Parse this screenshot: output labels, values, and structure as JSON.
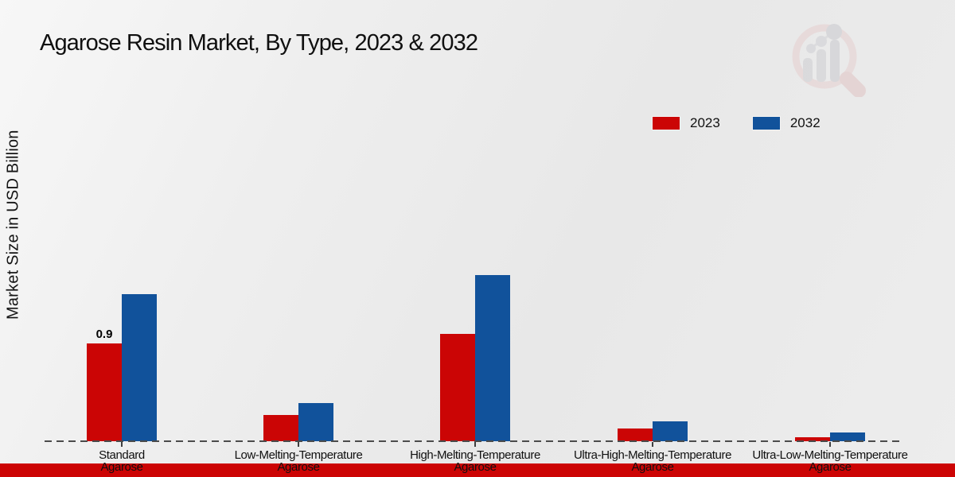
{
  "footer": {
    "bar_color": "#cc0404"
  },
  "watermark": {
    "name": "magnifier-bar-chart-logo"
  },
  "chart_data": {
    "type": "bar",
    "title": "Agarose Resin Market, By Type, 2023 & 2032",
    "ylabel": "Market Size in USD Billion",
    "xlabel": "",
    "categories": [
      {
        "line1": "Standard",
        "line2": "Agarose"
      },
      {
        "line1": "Low-Melting-Temperature",
        "line2": "Agarose"
      },
      {
        "line1": "High-Melting-Temperature",
        "line2": "Agarose"
      },
      {
        "line1": "Ultra-High-Melting-Temperature",
        "line2": "Agarose"
      },
      {
        "line1": "Ultra-Low-Melting-Temperature",
        "line2": "Agarose"
      }
    ],
    "series": [
      {
        "name": "2023",
        "color": "#cb0505",
        "values": [
          0.9,
          0.24,
          0.99,
          0.12,
          0.04
        ],
        "data_labels": [
          "0.9",
          "",
          "",
          "",
          ""
        ]
      },
      {
        "name": "2032",
        "color": "#11529b",
        "values": [
          1.35,
          0.35,
          1.53,
          0.18,
          0.08
        ],
        "data_labels": [
          "",
          "",
          "",
          "",
          ""
        ]
      }
    ],
    "ylim": [
      0,
      1.6
    ],
    "grid": false,
    "y_axis_ticks_visible": false,
    "baseline_style": "dashed",
    "legend_position": "top-right"
  }
}
